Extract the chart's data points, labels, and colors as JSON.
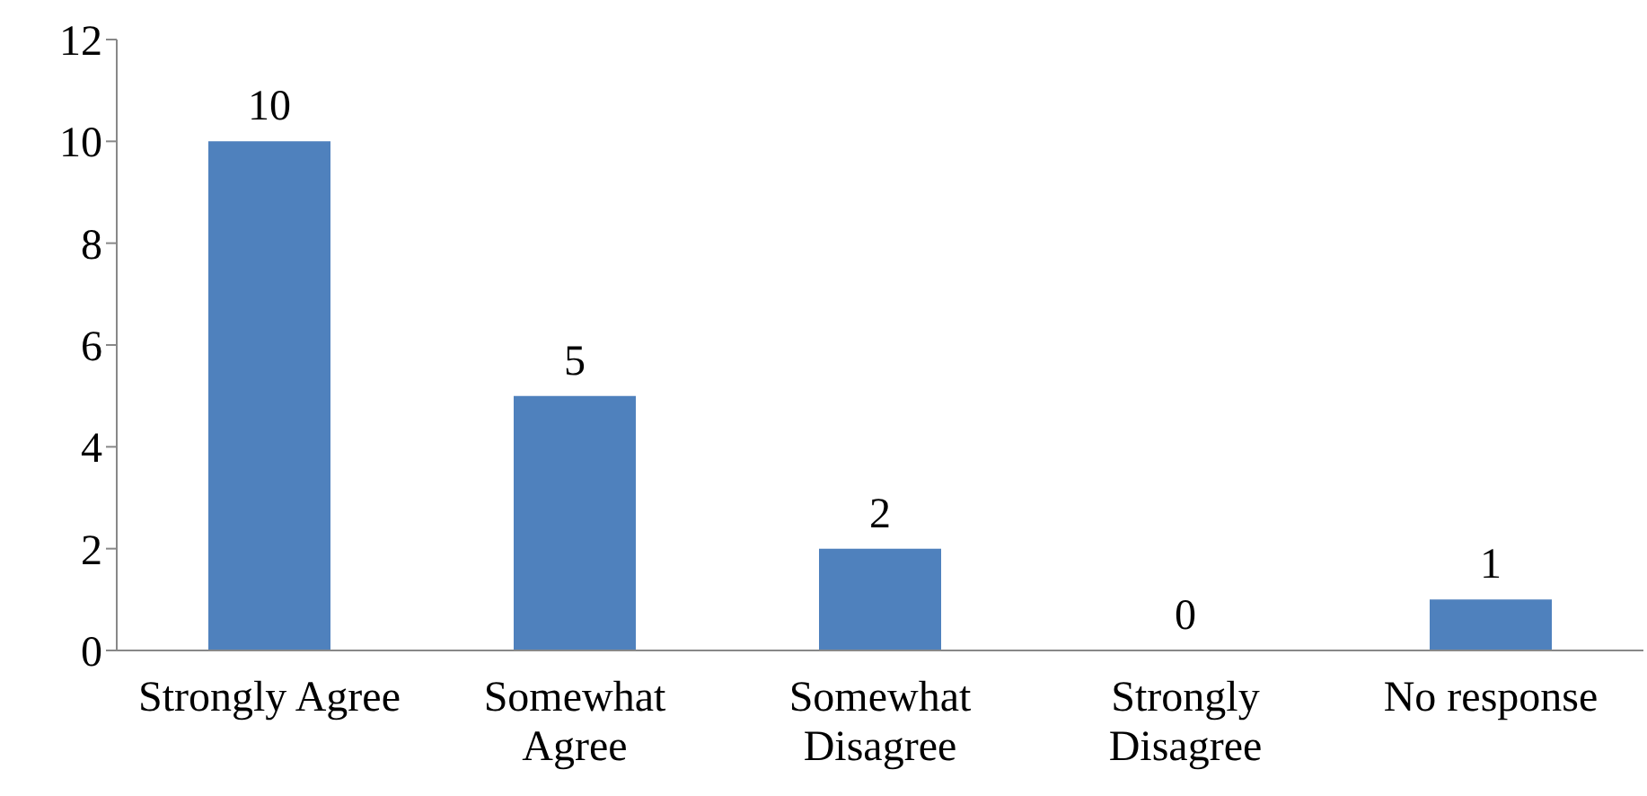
{
  "chart_data": {
    "type": "bar",
    "categories": [
      "Strongly Agree",
      "Somewhat Agree",
      "Somewhat Disagree",
      "Strongly Disagree",
      "No response"
    ],
    "values": [
      10,
      5,
      2,
      0,
      1
    ],
    "color": "#4f81bd",
    "ylim": [
      0,
      12
    ],
    "yticks": [
      0,
      2,
      4,
      6,
      8,
      10,
      12
    ],
    "grid": false,
    "data_labels": true,
    "legend": false
  }
}
